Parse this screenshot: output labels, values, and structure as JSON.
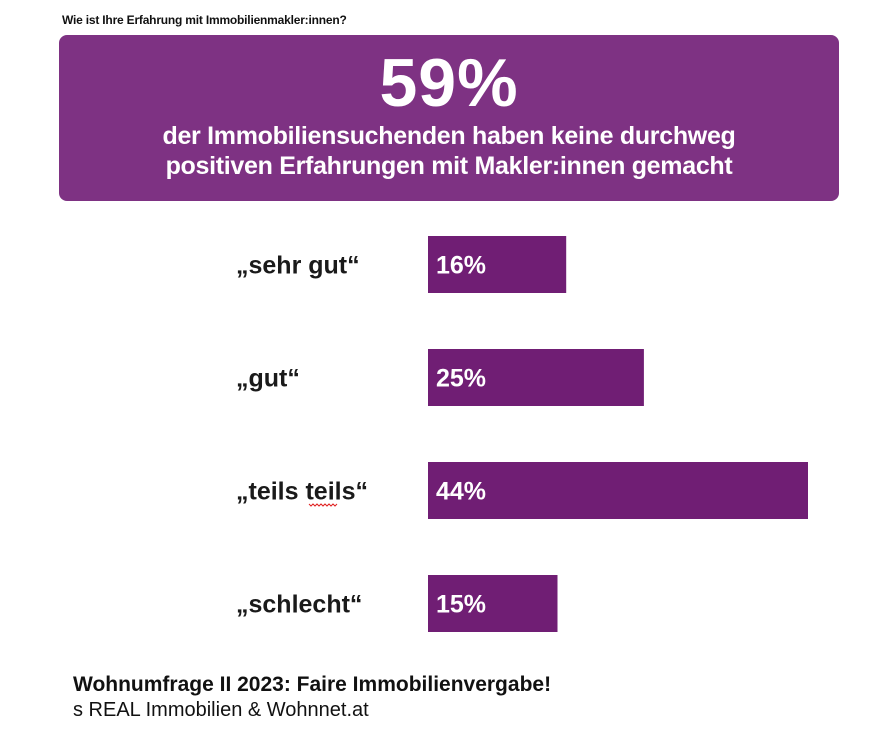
{
  "question": "Wie ist Ihre Erfahrung mit Immobilienmakler:innen?",
  "headline": {
    "percent": "59%",
    "line1": "der Immobiliensuchenden haben keine durchweg",
    "line2": "positiven Erfahrungen mit Makler:innen gemacht"
  },
  "colors": {
    "headline_box": "#7e3283",
    "bar": "#701e74",
    "bar_label": "#ffffff",
    "category_label": "#1a1a1a",
    "spellcheck_underline": "#e02020"
  },
  "chart_data": {
    "type": "bar",
    "orientation": "horizontal",
    "categories": [
      "„sehr gut“",
      "„gut“",
      "„teils teils“",
      "„schlecht“"
    ],
    "values": [
      16,
      25,
      44,
      15
    ],
    "value_labels": [
      "16%",
      "25%",
      "44%",
      "15%"
    ],
    "unit": "%",
    "xlim": [
      0,
      44
    ],
    "grid": false,
    "legend": "none"
  },
  "footer": {
    "title": "Wohnumfrage II 2023: Faire Immobilienvergabe!",
    "source": "s REAL Immobilien & Wohnnet.at"
  }
}
